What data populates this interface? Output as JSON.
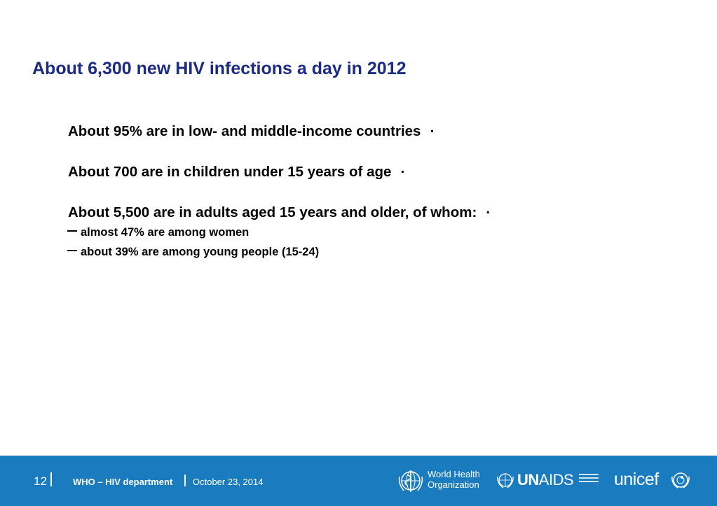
{
  "slide": {
    "title": "About 6,300 new HIV infections a day in 2012",
    "bullets": [
      {
        "text": "About 95% are in low- and middle-income countries",
        "marker": "▪"
      },
      {
        "text": "About 700 are in children under 15 years of age",
        "marker": "▪"
      },
      {
        "text": "About 5,500 are in adults aged 15 years and older, of whom:",
        "marker": "▪"
      }
    ],
    "sub_bullets": [
      "almost 47% are among women",
      "about 39% are among young people (15-24)"
    ]
  },
  "footer": {
    "page_number": "12",
    "department": "WHO – HIV department",
    "date": "October 23, 2014",
    "logos": {
      "who_line1": "World Health",
      "who_line2": "Organization",
      "unaids_bold": "UN",
      "unaids_rest": "AIDS",
      "unicef": "unicef"
    },
    "background_color": "#1a7bbf"
  }
}
